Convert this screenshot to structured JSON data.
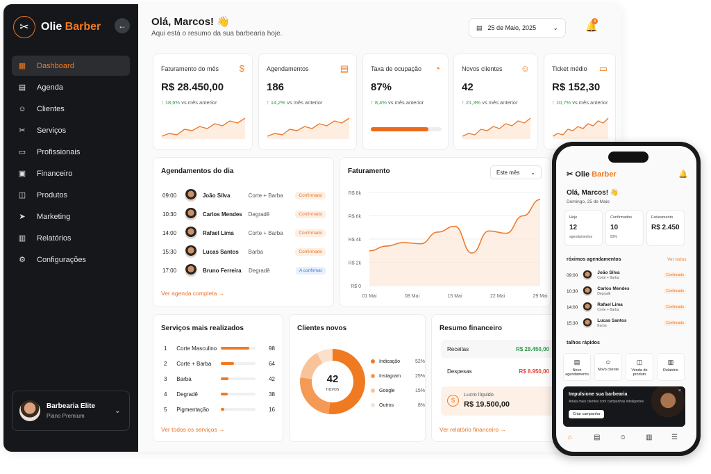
{
  "app": {
    "name_part1": "Olie",
    "name_part2": " Barber"
  },
  "sidebar": {
    "items": [
      {
        "label": "Dashboard",
        "icon": "grid-icon",
        "glyph": "▦"
      },
      {
        "label": "Agenda",
        "icon": "calendar-icon",
        "glyph": "▤"
      },
      {
        "label": "Clientes",
        "icon": "users-icon",
        "glyph": "☺"
      },
      {
        "label": "Serviços",
        "icon": "scissors-icon",
        "glyph": "✂"
      },
      {
        "label": "Profissionais",
        "icon": "id-card-icon",
        "glyph": "▭"
      },
      {
        "label": "Financeiro",
        "icon": "wallet-icon",
        "glyph": "▣"
      },
      {
        "label": "Produtos",
        "icon": "bag-icon",
        "glyph": "◫"
      },
      {
        "label": "Marketing",
        "icon": "send-icon",
        "glyph": "➤"
      },
      {
        "label": "Relatórios",
        "icon": "chart-icon",
        "glyph": "▥"
      },
      {
        "label": "Configurações",
        "icon": "gear-icon",
        "glyph": "⚙"
      }
    ],
    "shop": {
      "name": "Barbearia Elite",
      "plan": "Plano Premium"
    }
  },
  "header": {
    "greeting": "Olá, Marcos! 👋",
    "subtitle": "Aqui está o resumo da sua barbearia hoje.",
    "date": "25 de Maio, 2025",
    "notifications": "3"
  },
  "kpis": [
    {
      "title": "Faturamento do mês",
      "value": "R$ 28.450,00",
      "pct": "↑ 18,6%",
      "rest": " vs mês anterior",
      "icon": "dollar-icon",
      "glyph": "$"
    },
    {
      "title": "Agendamentos",
      "value": "186",
      "pct": "↑ 14,2%",
      "rest": " vs mês anterior",
      "icon": "calendar-icon",
      "glyph": "▤"
    },
    {
      "title": "Taxa de ocupação",
      "value": "87%",
      "pct": "↑ 8,4%",
      "rest": " vs mês anterior",
      "icon": "pie-icon",
      "glyph": "◔"
    },
    {
      "title": "Novos clientes",
      "value": "42",
      "pct": "↑ 21,3%",
      "rest": " vs mês anterior",
      "icon": "user-icon",
      "glyph": "☺"
    },
    {
      "title": "Ticket médio",
      "value": "R$ 152,30",
      "pct": "↑ 10,7%",
      "rest": " vs mês anterior",
      "icon": "card-icon",
      "glyph": "▭"
    }
  ],
  "occupancy": 0.87,
  "appointments": {
    "title": "Agendamentos do dia",
    "link": "Ver agenda completa",
    "rows": [
      {
        "time": "09:00",
        "name": "João Silva",
        "service": "Corte + Barba",
        "status": "Confirmado"
      },
      {
        "time": "10:30",
        "name": "Carlos Mendes",
        "service": "Degradê",
        "status": "Confirmado"
      },
      {
        "time": "14:00",
        "name": "Rafael Lima",
        "service": "Corte + Barba",
        "status": "Confirmado"
      },
      {
        "time": "15:30",
        "name": "Lucas Santos",
        "service": "Barba",
        "status": "Confirmado"
      },
      {
        "time": "17:00",
        "name": "Bruno Ferreira",
        "service": "Degradê",
        "status": "A confirmar"
      }
    ]
  },
  "revenue": {
    "title": "Faturamento",
    "filter": "Este mês"
  },
  "chart_data": {
    "type": "area",
    "title": "Faturamento",
    "x": [
      "01 Mai",
      "04 Mai",
      "08 Mai",
      "11 Mai",
      "15 Mai",
      "17 Mai",
      "18 Mai",
      "22 Mai",
      "25 Mai",
      "29 Mai",
      "30 Mai"
    ],
    "values": [
      3000,
      3400,
      3700,
      3600,
      4600,
      5100,
      2800,
      4700,
      4500,
      6000,
      7400
    ],
    "xticks": [
      "01 Mai",
      "08 Mai",
      "15 Mai",
      "22 Mai",
      "29 Mai"
    ],
    "yticks": [
      "R$ 0",
      "R$ 2k",
      "R$ 4k",
      "R$ 6k",
      "R$ 8k"
    ],
    "ylim": [
      0,
      8000
    ],
    "color": "#ec7b2f"
  },
  "services": {
    "title": "Serviços mais realizados",
    "link": "Ver todos os serviços",
    "rows": [
      {
        "rank": "1",
        "name": "Corte Masculino",
        "count": "98",
        "share": 0.82
      },
      {
        "rank": "2",
        "name": "Corte + Barba",
        "count": "64",
        "share": 0.38
      },
      {
        "rank": "3",
        "name": "Barba",
        "count": "42",
        "share": 0.22
      },
      {
        "rank": "4",
        "name": "Degradê",
        "count": "38",
        "share": 0.2
      },
      {
        "rank": "5",
        "name": "Pigmentação",
        "count": "16",
        "share": 0.1
      }
    ]
  },
  "new_clients": {
    "title": "Clientes novos",
    "total": "42",
    "total_label": "novos",
    "items": [
      {
        "label": "Indicação",
        "pct": "52%",
        "value": 52,
        "color": "#f07a22"
      },
      {
        "label": "Instagram",
        "pct": "25%",
        "value": 25,
        "color": "#f59a54"
      },
      {
        "label": "Google",
        "pct": "15%",
        "value": 15,
        "color": "#f8c39a"
      },
      {
        "label": "Outros",
        "pct": "8%",
        "value": 8,
        "color": "#fbe0cb"
      }
    ]
  },
  "finance": {
    "title": "Resumo financeiro",
    "income_label": "Receitas",
    "income": "R$ 28.450,00",
    "expense_label": "Despesas",
    "expense": "R$ 8.950,00",
    "net_label": "Lucro líquido",
    "net": "R$ 19.500,00",
    "link": "Ver relatório financeiro"
  },
  "mobile": {
    "greeting": "Olá, Marcos! 👋",
    "date": "Domingo, 25 de Maio",
    "stats": [
      {
        "label": "Hoje",
        "value": "12",
        "sub": "agendamentos"
      },
      {
        "label": "Confirmados",
        "value": "10",
        "sub": "83%"
      },
      {
        "label": "Faturamento",
        "value": "R$ 2.450",
        "sub": ""
      }
    ],
    "next_title": "róximos agendamentos",
    "next_link": "Ver todos",
    "rows": [
      {
        "time": "09:00",
        "name": "João Silva",
        "service": "Corte + Barba",
        "status": "Confirmado"
      },
      {
        "time": "10:30",
        "name": "Carlos Mendes",
        "service": "Degradê",
        "status": "Confirmado"
      },
      {
        "time": "14:00",
        "name": "Rafael Lima",
        "service": "Corte + Barba",
        "status": "Confirmado"
      },
      {
        "time": "15:30",
        "name": "Lucas Santos",
        "service": "Barba",
        "status": "Confirmado"
      }
    ],
    "quick_title": "talhos rápidos",
    "quick": [
      {
        "label": "Novo agendamento",
        "glyph": "▤"
      },
      {
        "label": "Novo cliente",
        "glyph": "☺"
      },
      {
        "label": "Venda de produto",
        "glyph": "◫"
      },
      {
        "label": "Relatório",
        "glyph": "▥"
      }
    ],
    "promo": {
      "title": "Impulsione sua barbearia",
      "text": "Atraia mais clientes com campanhas inteligentes",
      "button": "Criar campanha"
    }
  }
}
